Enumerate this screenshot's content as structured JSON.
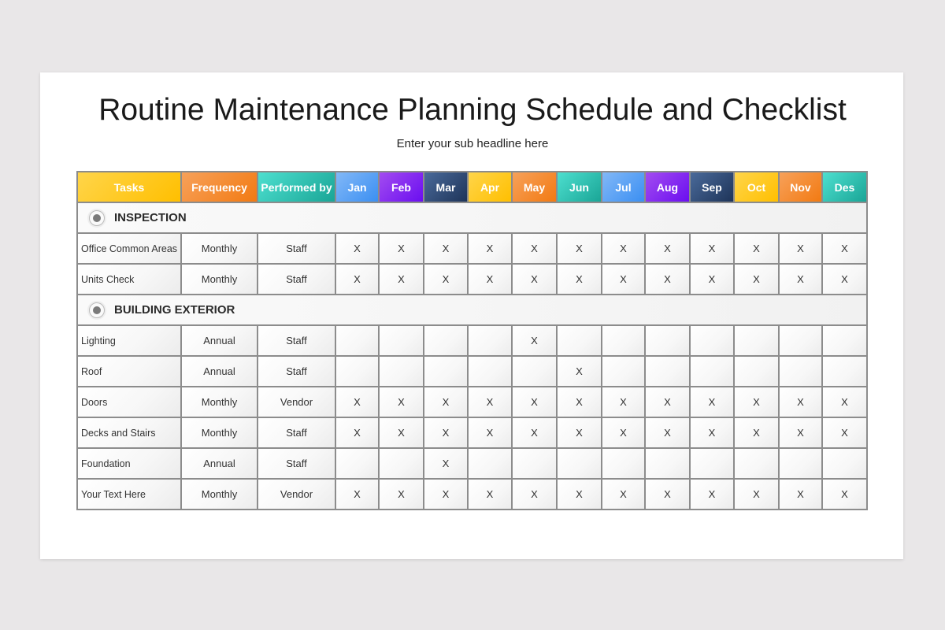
{
  "title": "Routine Maintenance Planning Schedule and Checklist",
  "subtitle": "Enter your sub headline here",
  "columns": [
    {
      "label": "Tasks",
      "colors": [
        "#ffd54a",
        "#ffbf00"
      ]
    },
    {
      "label": "Frequency",
      "colors": [
        "#f7a15a",
        "#f27a12"
      ]
    },
    {
      "label": "Performed by",
      "colors": [
        "#4ddfcf",
        "#1aa596"
      ]
    },
    {
      "label": "Jan",
      "colors": [
        "#82b8f7",
        "#3b8ff2"
      ]
    },
    {
      "label": "Feb",
      "colors": [
        "#a34cf0",
        "#6a0ef0"
      ]
    },
    {
      "label": "Mar",
      "colors": [
        "#4a6a9a",
        "#1e3459"
      ]
    },
    {
      "label": "Apr",
      "colors": [
        "#ffd54a",
        "#ffbf00"
      ]
    },
    {
      "label": "May",
      "colors": [
        "#f7a15a",
        "#f27a12"
      ]
    },
    {
      "label": "Jun",
      "colors": [
        "#4ddfcf",
        "#1aa596"
      ]
    },
    {
      "label": "Jul",
      "colors": [
        "#82b8f7",
        "#3b8ff2"
      ]
    },
    {
      "label": "Aug",
      "colors": [
        "#a34cf0",
        "#6a0ef0"
      ]
    },
    {
      "label": "Sep",
      "colors": [
        "#4a6a9a",
        "#1e3459"
      ]
    },
    {
      "label": "Oct",
      "colors": [
        "#ffd54a",
        "#ffbf00"
      ]
    },
    {
      "label": "Nov",
      "colors": [
        "#f7a15a",
        "#f27a12"
      ]
    },
    {
      "label": "Des",
      "colors": [
        "#4ddfcf",
        "#1aa596"
      ]
    }
  ],
  "sections": [
    {
      "name": "INSPECTION",
      "rows": [
        {
          "task": "Office Common Areas",
          "frequency": "Monthly",
          "performed_by": "Staff",
          "months": [
            "X",
            "X",
            "X",
            "X",
            "X",
            "X",
            "X",
            "X",
            "X",
            "X",
            "X",
            "X"
          ]
        },
        {
          "task": "Units Check",
          "frequency": "Monthly",
          "performed_by": "Staff",
          "months": [
            "X",
            "X",
            "X",
            "X",
            "X",
            "X",
            "X",
            "X",
            "X",
            "X",
            "X",
            "X"
          ]
        }
      ]
    },
    {
      "name": "BUILDING EXTERIOR",
      "rows": [
        {
          "task": "Lighting",
          "frequency": "Annual",
          "performed_by": "Staff",
          "months": [
            "",
            "",
            "",
            "",
            "X",
            "",
            "",
            "",
            "",
            "",
            "",
            ""
          ]
        },
        {
          "task": "Roof",
          "frequency": "Annual",
          "performed_by": "Staff",
          "months": [
            "",
            "",
            "",
            "",
            "",
            "X",
            "",
            "",
            "",
            "",
            "",
            ""
          ]
        },
        {
          "task": "Doors",
          "frequency": "Monthly",
          "performed_by": "Vendor",
          "months": [
            "X",
            "X",
            "X",
            "X",
            "X",
            "X",
            "X",
            "X",
            "X",
            "X",
            "X",
            "X"
          ]
        },
        {
          "task": "Decks and Stairs",
          "frequency": "Monthly",
          "performed_by": "Staff",
          "months": [
            "X",
            "X",
            "X",
            "X",
            "X",
            "X",
            "X",
            "X",
            "X",
            "X",
            "X",
            "X"
          ]
        },
        {
          "task": "Foundation",
          "frequency": "Annual",
          "performed_by": "Staff",
          "months": [
            "",
            "",
            "X",
            "",
            "",
            "",
            "",
            "",
            "",
            "",
            "",
            ""
          ]
        },
        {
          "task": "Your Text Here",
          "frequency": "Monthly",
          "performed_by": "Vendor",
          "months": [
            "X",
            "X",
            "X",
            "X",
            "X",
            "X",
            "X",
            "X",
            "X",
            "X",
            "X",
            "X"
          ]
        }
      ]
    }
  ]
}
